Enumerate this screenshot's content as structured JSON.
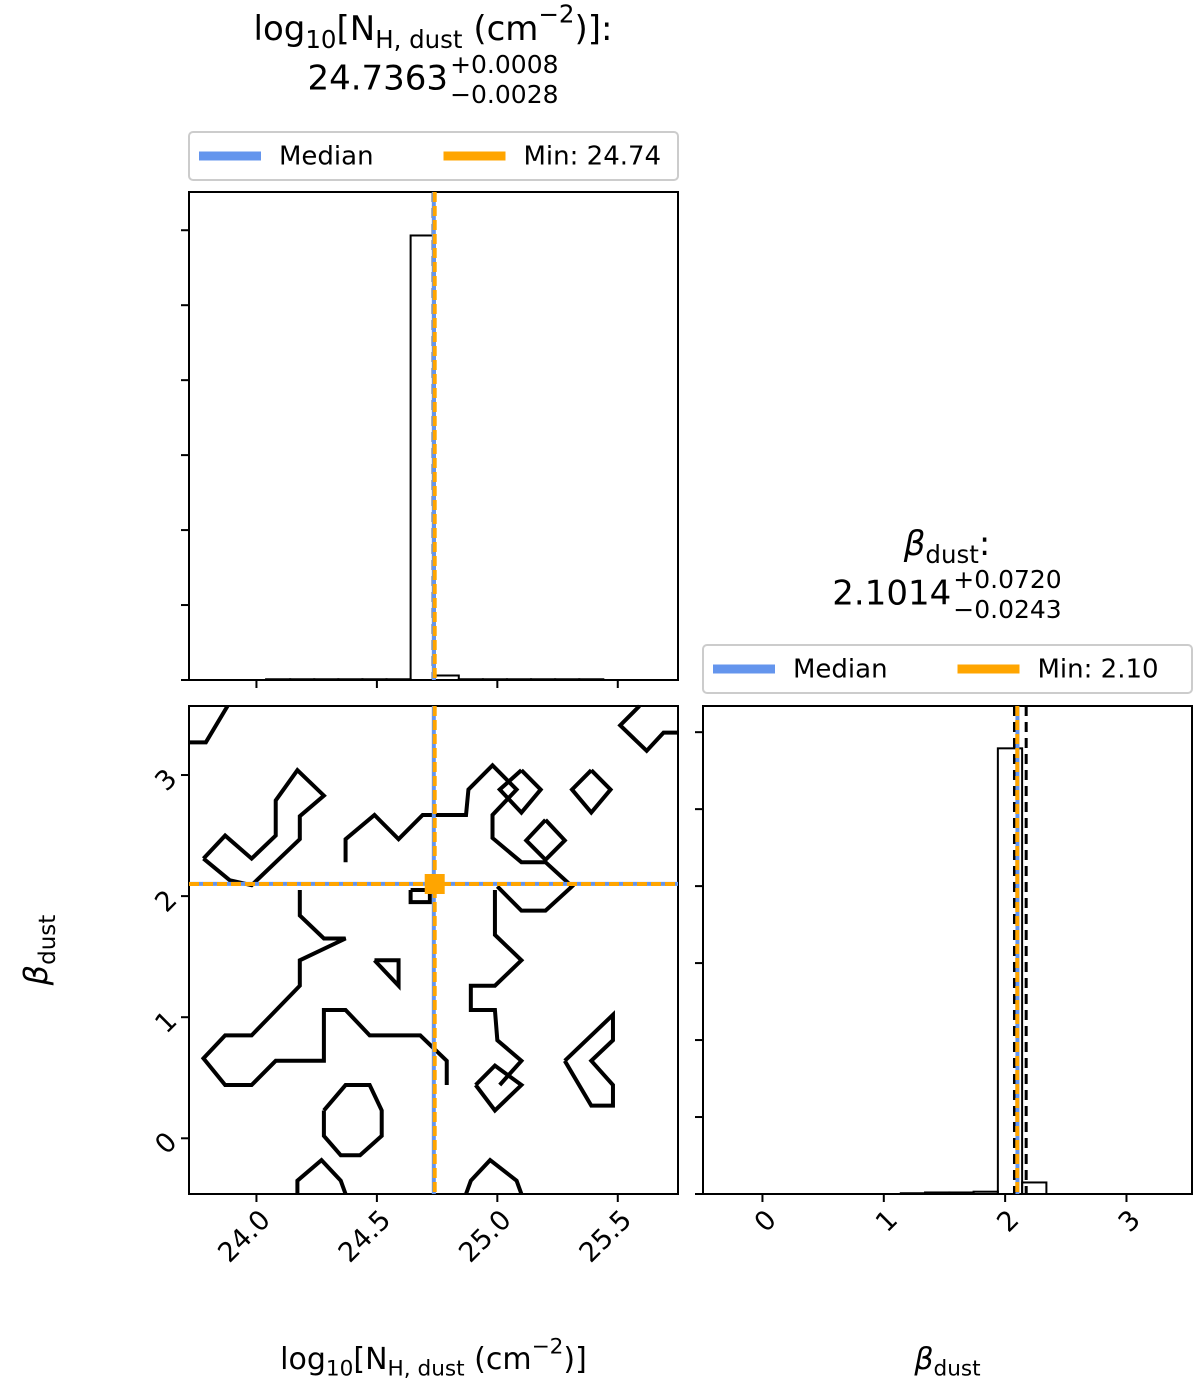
{
  "chart_data": [
    {
      "type": "histogram",
      "title": [
        {
          "text": "log"
        },
        {
          "text": "10",
          "shift": "sub"
        },
        {
          "text": "[N"
        },
        {
          "text": "H, dust",
          "shift": "sub"
        },
        {
          "text": " (cm"
        },
        {
          "text": "−2",
          "shift": "super"
        },
        {
          "text": ")]:"
        }
      ],
      "summary": {
        "values": [
          24.7363,
          0.0008,
          -0.0028
        ],
        "value_labels": [
          "24.7363",
          "+0.0008",
          "−0.0028"
        ]
      },
      "legend": [
        {
          "name": "Median",
          "color": "#6495ed"
        },
        {
          "name": "Min: 24.74",
          "color": "#ffa500",
          "value": 24.74
        }
      ],
      "bins": [
        24.04,
        24.14,
        24.24,
        24.34,
        24.44,
        24.54,
        24.64,
        24.74,
        24.84,
        24.94,
        25.04,
        25.14,
        25.24,
        25.34,
        25.44
      ],
      "values": [
        0.01,
        0.01,
        0.01,
        0.01,
        0.01,
        0.01,
        5.93,
        0.06,
        0.01,
        0.01,
        0.01,
        0.01,
        0.01,
        0.01
      ],
      "xlim": [
        23.72,
        25.75
      ],
      "ylim": [
        0,
        6.51
      ],
      "xticks": [
        24,
        24.5,
        25,
        25.5
      ],
      "yticks": [
        0,
        1,
        2,
        3,
        4,
        5,
        6
      ],
      "xtick_labels": false,
      "ytick_labels": false
    },
    {
      "type": "contour",
      "xlabel": [
        {
          "text": "log"
        },
        {
          "text": "10",
          "shift": "sub"
        },
        {
          "text": "[N"
        },
        {
          "text": "H, dust",
          "shift": "sub"
        },
        {
          "text": " (cm"
        },
        {
          "text": "−2",
          "shift": "super"
        },
        {
          "text": ")]"
        }
      ],
      "ylabel": [
        {
          "text": "β",
          "style": "italic"
        },
        {
          "text": "dust",
          "shift": "sub"
        }
      ],
      "xlim": [
        23.72,
        25.75
      ],
      "ylim": [
        -0.46,
        3.57
      ],
      "xticks": [
        {
          "value": 24,
          "label": "24.0"
        },
        24.5,
        {
          "value": 25,
          "label": "25.0"
        },
        25.5
      ],
      "yticks": [
        0,
        1,
        2,
        3
      ],
      "contours": [
        {
          "x": [
            23.72,
            23.79,
            23.88
          ],
          "y": [
            3.27,
            3.27,
            3.57
          ]
        },
        {
          "x": [
            23.78,
            23.87,
            23.98,
            24.08,
            24.08,
            24.17,
            24.28,
            24.18,
            24.18,
            24.08,
            23.98,
            23.89,
            23.78
          ],
          "y": [
            2.31,
            2.5,
            2.31,
            2.5,
            2.79,
            3.04,
            2.83,
            2.66,
            2.47,
            2.28,
            2.09,
            2.13,
            2.31
          ]
        },
        {
          "x": [
            24.37,
            24.37,
            24.49,
            24.59,
            24.69,
            24.87,
            24.88,
            24.98,
            25.08,
            24.98,
            24.98,
            25.1,
            25.2,
            25.31,
            25.2,
            25.1,
            25.0
          ],
          "y": [
            2.28,
            2.47,
            2.67,
            2.47,
            2.67,
            2.67,
            2.88,
            3.08,
            2.88,
            2.67,
            2.48,
            2.28,
            2.28,
            2.08,
            1.88,
            1.88,
            2.08
          ]
        },
        {
          "x": [
            24.18,
            24.18,
            24.28,
            24.37,
            24.18,
            24.18,
            23.98,
            23.87,
            23.78,
            23.87,
            23.98,
            24.08,
            24.28,
            24.28,
            24.37,
            24.47,
            24.59,
            24.68,
            24.79,
            24.79
          ],
          "y": [
            2.05,
            1.84,
            1.65,
            1.65,
            1.47,
            1.26,
            0.85,
            0.85,
            0.66,
            0.44,
            0.44,
            0.64,
            0.64,
            1.06,
            1.06,
            0.85,
            0.85,
            0.85,
            0.64,
            0.44
          ]
        },
        {
          "x": [
            24.49,
            24.59,
            24.59,
            24.49
          ],
          "y": [
            1.47,
            1.47,
            1.26,
            1.47
          ]
        },
        {
          "x": [
            24.99,
            24.99,
            25.1,
            24.99,
            24.89,
            24.89,
            24.99,
            25.0,
            25.1,
            25.01
          ],
          "y": [
            2.05,
            1.68,
            1.47,
            1.26,
            1.26,
            1.06,
            1.06,
            0.81,
            0.64,
            0.44
          ]
        },
        {
          "x": [
            24.28,
            24.37,
            24.47,
            24.52,
            24.52,
            24.43,
            24.35,
            24.28,
            24.28
          ],
          "y": [
            0.23,
            0.44,
            0.44,
            0.23,
            0.02,
            -0.14,
            -0.14,
            0.02,
            0.23
          ]
        },
        {
          "x": [
            24.91,
            24.99,
            25.1,
            24.99,
            24.91
          ],
          "y": [
            0.44,
            0.6,
            0.44,
            0.23,
            0.44
          ]
        },
        {
          "x": [
            25.28,
            25.48,
            25.48,
            25.39,
            25.48,
            25.48,
            25.39,
            25.28
          ],
          "y": [
            0.64,
            1.02,
            0.81,
            0.64,
            0.44,
            0.27,
            0.27,
            0.64
          ]
        },
        {
          "x": [
            25.39,
            25.47,
            25.39,
            25.31,
            25.39
          ],
          "y": [
            3.04,
            2.88,
            2.69,
            2.88,
            3.04
          ]
        },
        {
          "x": [
            25.2,
            25.28,
            25.2,
            25.12,
            25.2
          ],
          "y": [
            2.63,
            2.46,
            2.3,
            2.46,
            2.63
          ]
        },
        {
          "x": [
            25.1,
            25.18,
            25.1,
            25.01,
            25.1
          ],
          "y": [
            3.04,
            2.88,
            2.69,
            2.88,
            3.04
          ]
        },
        {
          "x": [
            25.59,
            25.51,
            25.62,
            25.69,
            25.75
          ],
          "y": [
            3.57,
            3.41,
            3.2,
            3.35,
            3.35
          ]
        },
        {
          "x": [
            24.17,
            24.17,
            24.27,
            24.35,
            24.37
          ],
          "y": [
            -0.46,
            -0.35,
            -0.18,
            -0.35,
            -0.46
          ]
        },
        {
          "x": [
            24.87,
            24.89,
            24.97,
            25.08,
            25.1
          ],
          "y": [
            -0.46,
            -0.35,
            -0.18,
            -0.35,
            -0.46
          ]
        },
        {
          "x": [
            24.64,
            24.72,
            24.72,
            24.64,
            24.64
          ],
          "y": [
            2.05,
            2.05,
            1.95,
            1.95,
            2.05
          ]
        }
      ]
    },
    {
      "type": "histogram",
      "title": [
        {
          "text": "β",
          "style": "italic"
        },
        {
          "text": "dust",
          "shift": "sub"
        },
        {
          "text": ":"
        }
      ],
      "summary": {
        "values": [
          2.1014,
          0.072,
          -0.0243
        ],
        "value_labels": [
          "2.1014",
          "+0.0720",
          "−0.0243"
        ]
      },
      "legend": [
        {
          "name": "Median",
          "color": "#6495ed"
        },
        {
          "name": "Min: 2.10",
          "color": "#ffa500",
          "value": 2.1
        }
      ],
      "xlabel": [
        {
          "text": "β",
          "style": "italic"
        },
        {
          "text": "dust",
          "shift": "sub"
        }
      ],
      "bins": [
        1.14,
        1.34,
        1.54,
        1.74,
        1.94,
        2.14,
        2.34
      ],
      "values": [
        0.01,
        0.02,
        0.02,
        0.03,
        5.79,
        0.15
      ],
      "xlim": [
        -0.49,
        3.54
      ],
      "ylim": [
        0,
        6.34
      ],
      "xticks": [
        0,
        1,
        2,
        3
      ],
      "yticks": [
        0,
        1,
        2,
        3,
        4,
        5,
        6
      ],
      "xtick_labels": true,
      "ytick_labels": false
    }
  ]
}
